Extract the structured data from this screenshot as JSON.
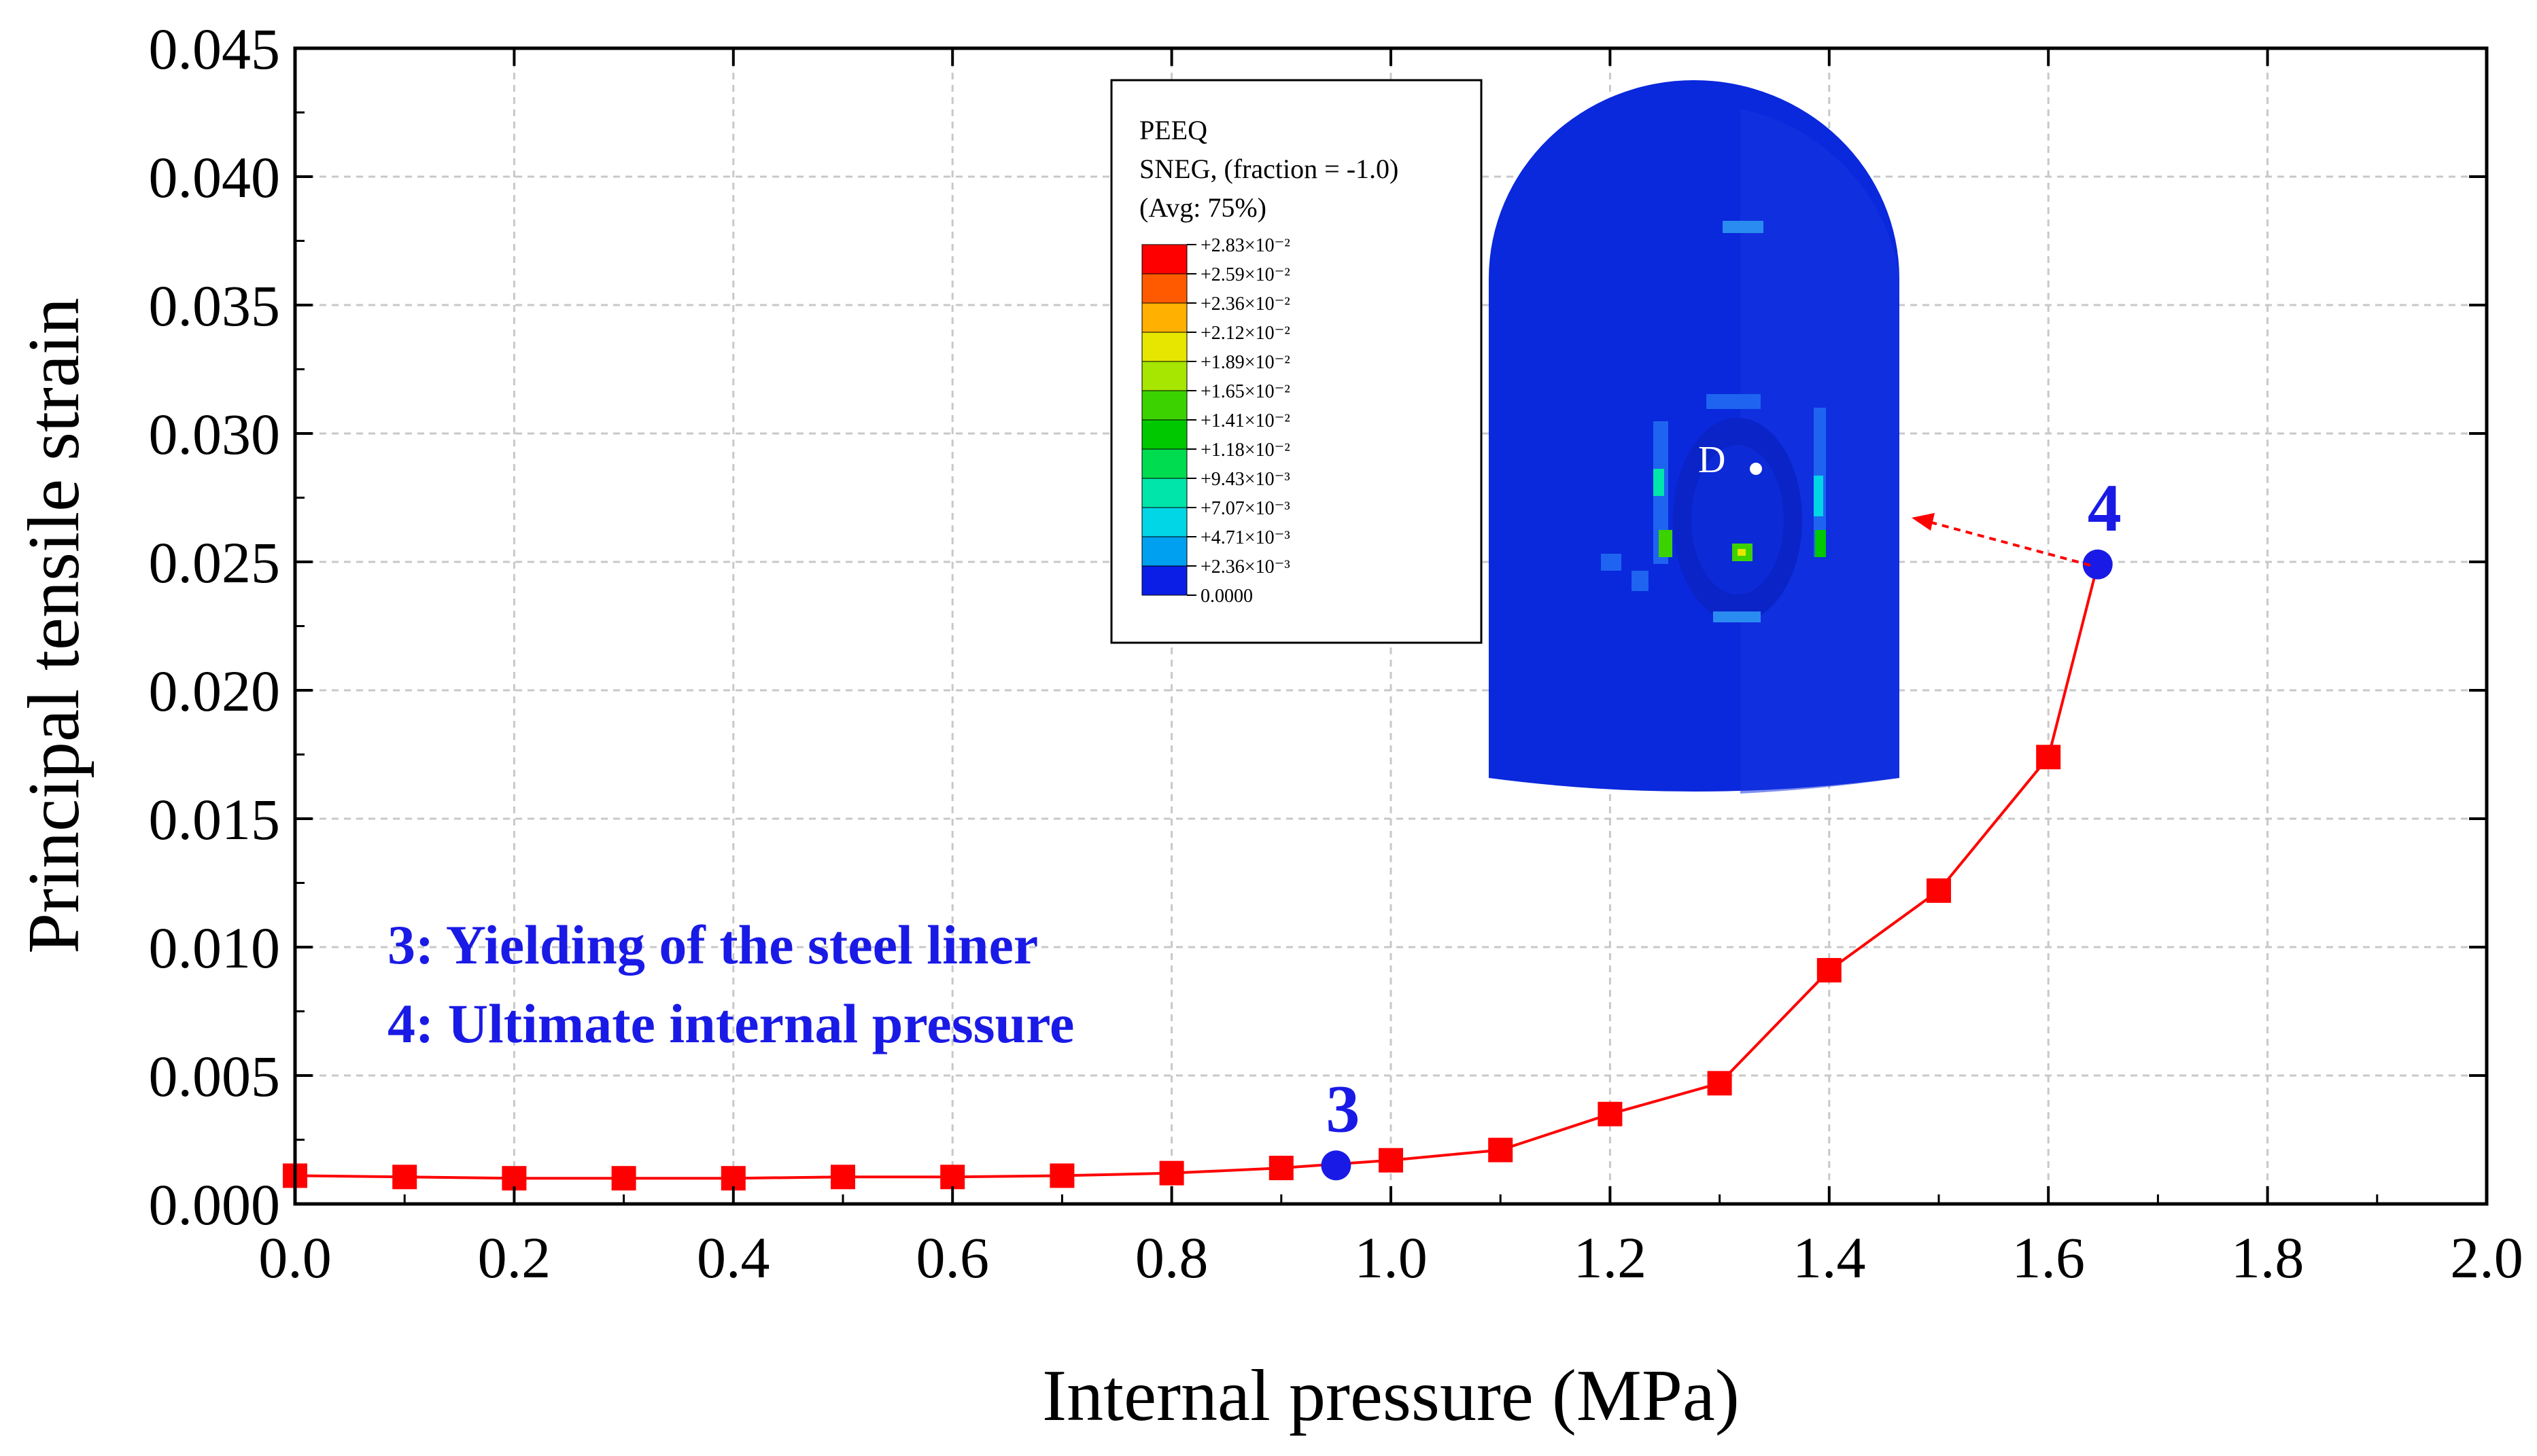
{
  "chart_data": {
    "type": "line",
    "xlabel": "Internal pressure (MPa)",
    "ylabel": "Principal tensile strain",
    "xlim": [
      0.0,
      2.0
    ],
    "ylim": [
      0.0,
      0.045
    ],
    "x_ticks": [
      "0.0",
      "0.2",
      "0.4",
      "0.6",
      "0.8",
      "1.0",
      "1.2",
      "1.4",
      "1.6",
      "1.8",
      "2.0"
    ],
    "y_ticks": [
      "0.000",
      "0.005",
      "0.010",
      "0.015",
      "0.020",
      "0.025",
      "0.030",
      "0.035",
      "0.040",
      "0.045"
    ],
    "grid": true,
    "series": [
      {
        "color": "#ff0000",
        "marker": "square",
        "x": [
          0.0,
          0.1,
          0.2,
          0.3,
          0.4,
          0.5,
          0.6,
          0.7,
          0.8,
          0.9,
          1.0,
          1.1,
          1.2,
          1.3,
          1.4,
          1.5,
          1.6,
          1.645
        ],
        "y": [
          0.0011,
          0.00105,
          0.001,
          0.001,
          0.001,
          0.00105,
          0.00105,
          0.0011,
          0.0012,
          0.0014,
          0.0017,
          0.0021,
          0.0035,
          0.0047,
          0.0091,
          0.0122,
          0.0174,
          0.0249
        ]
      }
    ],
    "highlight_points": [
      {
        "label": "3",
        "x": 0.95,
        "y": 0.0015,
        "color": "#1a1ae6"
      },
      {
        "label": "4",
        "x": 1.645,
        "y": 0.0249,
        "color": "#1a1ae6"
      }
    ],
    "annotations": [
      "3: Yielding of the steel liner",
      "4: Ultimate internal pressure"
    ]
  },
  "inset": {
    "legend_title_lines": [
      "PEEQ",
      "SNEG, (fraction = -1.0)",
      "(Avg: 75%)"
    ],
    "colorbar_labels": [
      "+2.83×10⁻²",
      "+2.59×10⁻²",
      "+2.36×10⁻²",
      "+2.12×10⁻²",
      "+1.89×10⁻²",
      "+1.65×10⁻²",
      "+1.41×10⁻²",
      "+1.18×10⁻²",
      "+9.43×10⁻³",
      "+7.07×10⁻³",
      "+4.71×10⁻³",
      "+2.36×10⁻³",
      "0.0000"
    ],
    "colorbar_colors": [
      "#ff0000",
      "#ff5a00",
      "#ffb000",
      "#e6e600",
      "#a6e600",
      "#3cd200",
      "#00c800",
      "#00dc50",
      "#00e6aa",
      "#00d6e6",
      "#00a0f0",
      "#1e64f0",
      "#0a1ee6"
    ],
    "point_label": "D",
    "model_color": "#0a28dc"
  }
}
